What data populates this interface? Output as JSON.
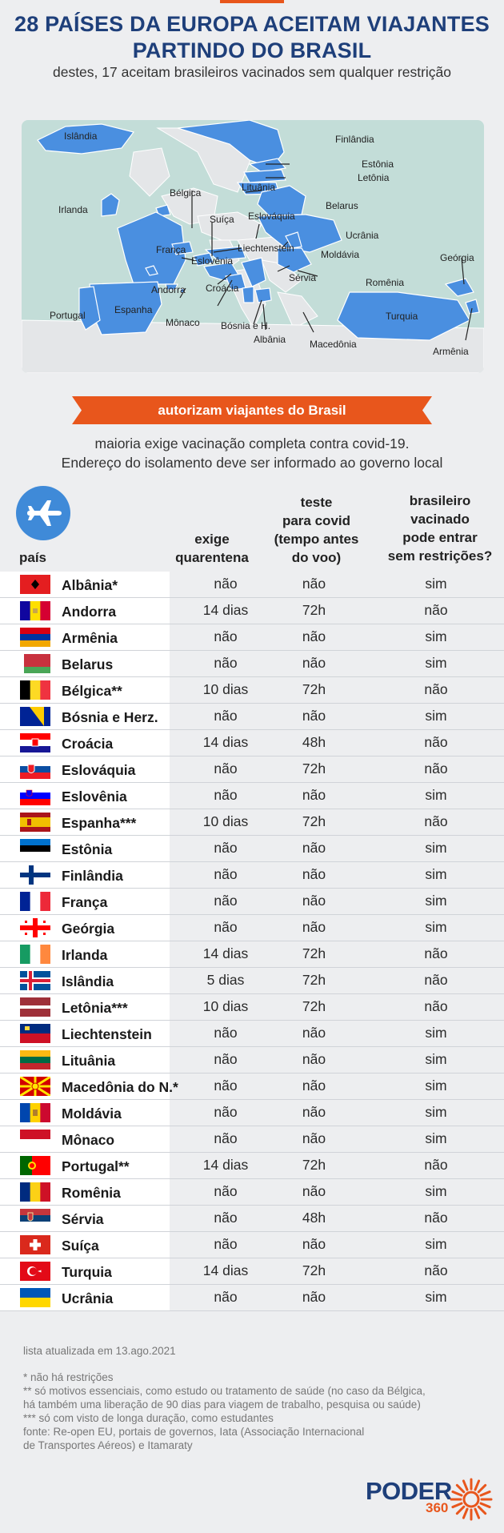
{
  "header": {
    "title_line1": "28 PAÍSES DA EUROPA ACEITAM VIAJANTES",
    "title_line2": "PARTINDO DO BRASIL",
    "subtitle": "destes, 17 aceitam brasileiros vacinados sem qualquer restrição"
  },
  "map": {
    "labels": [
      "Islândia",
      "Finlândia",
      "Estônia",
      "Letônia",
      "Lituânia",
      "Bélgica",
      "Irlanda",
      "Eslováquia",
      "Belarus",
      "Suíça",
      "Ucrânia",
      "Liechtenstein",
      "França",
      "Moldávia",
      "Eslovênia",
      "Geórgia",
      "Sérvia",
      "Andorra",
      "Romênia",
      "Croácia",
      "Portugal",
      "Espanha",
      "Mônaco",
      "Bósnia e H.",
      "Turquia",
      "Albânia",
      "Macedônia",
      "Armênia"
    ]
  },
  "banner": {
    "text": "autorizam viajantes do Brasil",
    "desc_line1": "maioria exige vacinação completa contra covid-19.",
    "desc_line2": "Endereço do isolamento deve ser informado ao governo local"
  },
  "columns": {
    "country": "país",
    "quarantine": [
      "exige",
      "quarentena"
    ],
    "test": [
      "teste",
      "para covid",
      "(tempo antes",
      "do voo)"
    ],
    "vaccinated": [
      "brasileiro",
      "vacinado",
      "pode entrar",
      "sem restrições?"
    ]
  },
  "icons": {
    "plane": "airplane-icon"
  },
  "colors": {
    "title": "#1e3f7a",
    "accent": "#e8561c",
    "map_country": "#4a8fe0",
    "map_sea": "#c3ddd8"
  },
  "countries": [
    {
      "name": "Albânia*",
      "quarantine": "não",
      "test": "não",
      "vaccinated": "sim",
      "flag": "albania"
    },
    {
      "name": "Andorra",
      "quarantine": "14 dias",
      "test": "72h",
      "vaccinated": "não",
      "flag": "andorra"
    },
    {
      "name": "Armênia",
      "quarantine": "não",
      "test": "não",
      "vaccinated": "sim",
      "flag": "armenia"
    },
    {
      "name": "Belarus",
      "quarantine": "não",
      "test": "não",
      "vaccinated": "sim",
      "flag": "belarus"
    },
    {
      "name": "Bélgica**",
      "quarantine": "10 dias",
      "test": "72h",
      "vaccinated": "não",
      "flag": "belgium"
    },
    {
      "name": "Bósnia e Herz.",
      "quarantine": "não",
      "test": "não",
      "vaccinated": "sim",
      "flag": "bosnia"
    },
    {
      "name": "Croácia",
      "quarantine": "14 dias",
      "test": "48h",
      "vaccinated": "não",
      "flag": "croatia"
    },
    {
      "name": "Eslováquia",
      "quarantine": "não",
      "test": "72h",
      "vaccinated": "não",
      "flag": "slovakia"
    },
    {
      "name": "Eslovênia",
      "quarantine": "não",
      "test": "não",
      "vaccinated": "sim",
      "flag": "slovenia"
    },
    {
      "name": "Espanha***",
      "quarantine": "10 dias",
      "test": "72h",
      "vaccinated": "não",
      "flag": "spain"
    },
    {
      "name": "Estônia",
      "quarantine": "não",
      "test": "não",
      "vaccinated": "sim",
      "flag": "estonia"
    },
    {
      "name": "Finlândia",
      "quarantine": "não",
      "test": "não",
      "vaccinated": "sim",
      "flag": "finland"
    },
    {
      "name": "França",
      "quarantine": "não",
      "test": "não",
      "vaccinated": "sim",
      "flag": "france"
    },
    {
      "name": "Geórgia",
      "quarantine": "não",
      "test": "não",
      "vaccinated": "sim",
      "flag": "georgia"
    },
    {
      "name": "Irlanda",
      "quarantine": "14 dias",
      "test": "72h",
      "vaccinated": "não",
      "flag": "ireland"
    },
    {
      "name": "Islândia",
      "quarantine": "5 dias",
      "test": "72h",
      "vaccinated": "não",
      "flag": "iceland"
    },
    {
      "name": "Letônia***",
      "quarantine": "10 dias",
      "test": "72h",
      "vaccinated": "não",
      "flag": "latvia"
    },
    {
      "name": "Liechtenstein",
      "quarantine": "não",
      "test": "não",
      "vaccinated": "sim",
      "flag": "liechtenstein"
    },
    {
      "name": "Lituânia",
      "quarantine": "não",
      "test": "não",
      "vaccinated": "sim",
      "flag": "lithuania"
    },
    {
      "name": "Macedônia do N.*",
      "quarantine": "não",
      "test": "não",
      "vaccinated": "sim",
      "flag": "macedonia"
    },
    {
      "name": "Moldávia",
      "quarantine": "não",
      "test": "não",
      "vaccinated": "sim",
      "flag": "moldova"
    },
    {
      "name": "Mônaco",
      "quarantine": "não",
      "test": "não",
      "vaccinated": "sim",
      "flag": "monaco"
    },
    {
      "name": "Portugal**",
      "quarantine": "14 dias",
      "test": "72h",
      "vaccinated": "não",
      "flag": "portugal"
    },
    {
      "name": "Romênia",
      "quarantine": "não",
      "test": "não",
      "vaccinated": "sim",
      "flag": "romania"
    },
    {
      "name": "Sérvia",
      "quarantine": "não",
      "test": "48h",
      "vaccinated": "não",
      "flag": "serbia"
    },
    {
      "name": "Suíça",
      "quarantine": "não",
      "test": "não",
      "vaccinated": "sim",
      "flag": "switzerland"
    },
    {
      "name": "Turquia",
      "quarantine": "14 dias",
      "test": "72h",
      "vaccinated": "não",
      "flag": "turkey"
    },
    {
      "name": "Ucrânia",
      "quarantine": "não",
      "test": "não",
      "vaccinated": "sim",
      "flag": "ukraine"
    }
  ],
  "footer": {
    "updated": "lista atualizada em 13.ago.2021",
    "notes": [
      "* não há restrições",
      "** só motivos essenciais, como estudo ou tratamento de saúde  (no caso da Bélgica,",
      "há também uma liberação de 90 dias para viagem de trabalho, pesquisa ou saúde)",
      "*** só com visto de longa duração, como estudantes",
      "fonte: Re-open EU, portais de governos, Iata (Associação Internacional",
      " de Transportes Aéreos) e Itamaraty"
    ]
  },
  "logo": {
    "brand": "PODER",
    "number": "360"
  }
}
